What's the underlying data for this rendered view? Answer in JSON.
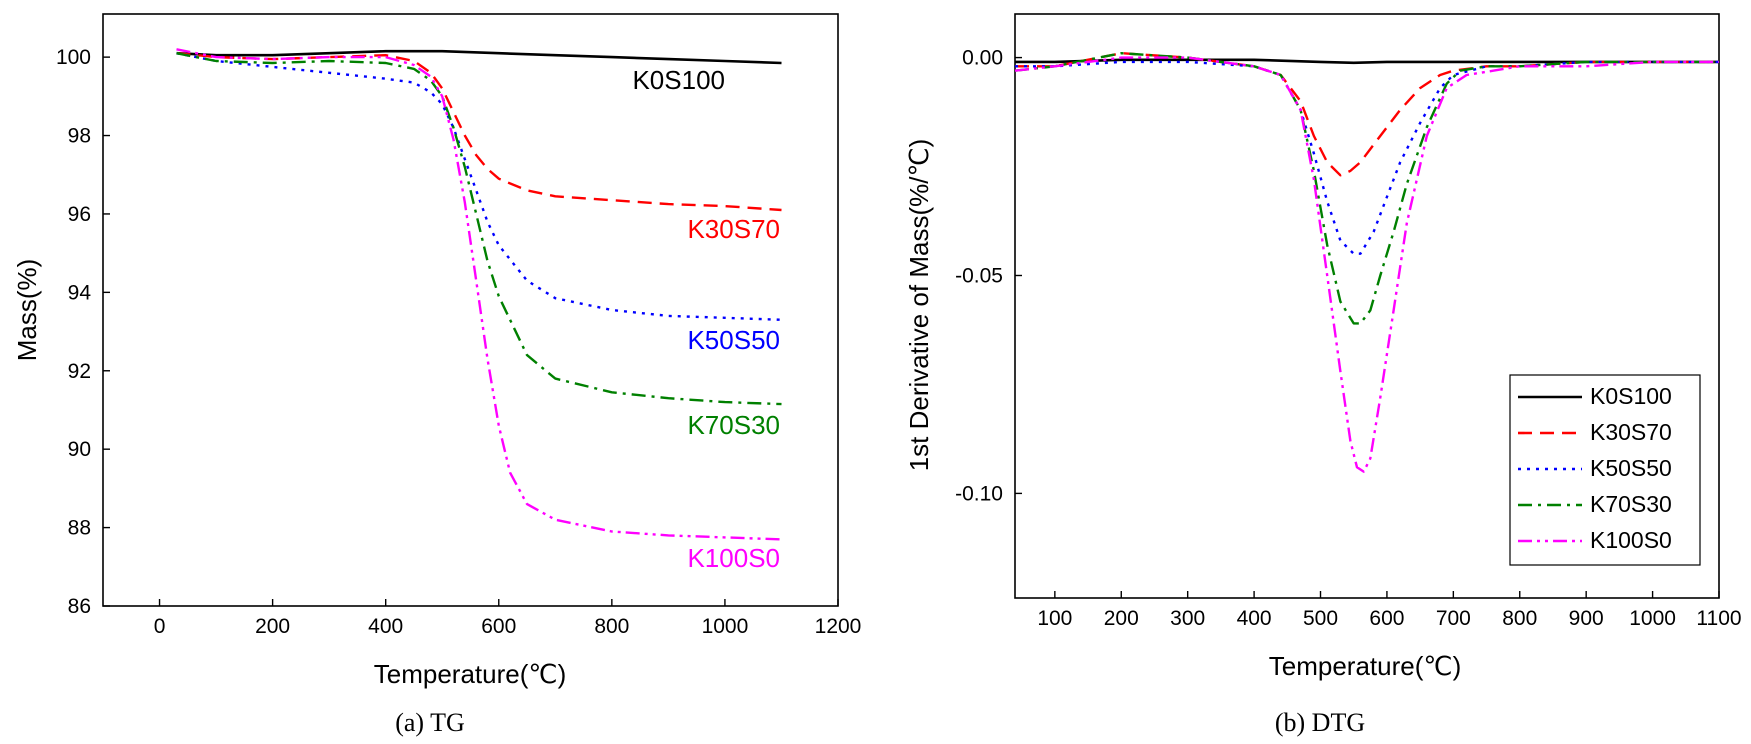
{
  "chart_data": [
    {
      "type": "line",
      "title": "",
      "caption": "(a) TG",
      "xlabel": "Temperature(℃)",
      "ylabel": "Mass(%)",
      "xlim": [
        -100,
        1200
      ],
      "ylim": [
        86,
        101.1
      ],
      "xticks": [
        0,
        200,
        400,
        600,
        800,
        1000,
        1200
      ],
      "xtick_labels": [
        "0",
        "200",
        "400",
        "600",
        "800",
        "1000",
        "1200"
      ],
      "yticks": [
        86,
        88,
        90,
        92,
        94,
        96,
        98,
        100
      ],
      "ytick_labels": [
        "86",
        "88",
        "90",
        "92",
        "94",
        "96",
        "98",
        "100"
      ],
      "series": [
        {
          "name": "K0S100",
          "color": "#000000",
          "dash": "solid",
          "x": [
            30,
            100,
            200,
            300,
            400,
            500,
            600,
            700,
            800,
            900,
            1000,
            1100
          ],
          "y": [
            100.1,
            100.05,
            100.05,
            100.1,
            100.15,
            100.15,
            100.1,
            100.05,
            100.0,
            99.95,
            99.9,
            99.85
          ]
        },
        {
          "name": "K30S70",
          "color": "#ff0000",
          "dash": "dash",
          "x": [
            30,
            100,
            200,
            300,
            400,
            450,
            480,
            500,
            520,
            540,
            560,
            580,
            600,
            650,
            700,
            800,
            900,
            1000,
            1100
          ],
          "y": [
            100.1,
            100.0,
            99.95,
            100.0,
            100.05,
            99.9,
            99.6,
            99.2,
            98.6,
            98.0,
            97.5,
            97.15,
            96.9,
            96.6,
            96.45,
            96.35,
            96.25,
            96.2,
            96.1
          ]
        },
        {
          "name": "K50S50",
          "color": "#0000ff",
          "dash": "dot",
          "x": [
            30,
            100,
            200,
            300,
            400,
            450,
            480,
            500,
            520,
            540,
            560,
            580,
            600,
            650,
            700,
            800,
            900,
            1000,
            1100
          ],
          "y": [
            100.1,
            99.9,
            99.75,
            99.6,
            99.45,
            99.35,
            99.1,
            98.8,
            98.2,
            97.4,
            96.6,
            95.8,
            95.2,
            94.3,
            93.85,
            93.55,
            93.4,
            93.35,
            93.3
          ]
        },
        {
          "name": "K70S30",
          "color": "#008000",
          "dash": "dashdot",
          "x": [
            30,
            100,
            200,
            300,
            400,
            450,
            480,
            500,
            520,
            540,
            560,
            580,
            600,
            650,
            700,
            800,
            900,
            1000,
            1100
          ],
          "y": [
            100.1,
            99.9,
            99.85,
            99.9,
            99.85,
            99.7,
            99.4,
            99.0,
            98.2,
            97.2,
            96.0,
            94.8,
            93.9,
            92.4,
            91.8,
            91.45,
            91.3,
            91.2,
            91.15
          ]
        },
        {
          "name": "K100S0",
          "color": "#ff00ff",
          "dash": "dashdotdot",
          "x": [
            30,
            100,
            200,
            300,
            400,
            450,
            480,
            500,
            520,
            540,
            560,
            580,
            600,
            620,
            650,
            700,
            800,
            900,
            1000,
            1100
          ],
          "y": [
            100.2,
            100.0,
            99.95,
            100.0,
            100.0,
            99.8,
            99.5,
            99.0,
            97.9,
            96.3,
            94.3,
            92.3,
            90.6,
            89.4,
            88.6,
            88.2,
            87.9,
            87.8,
            87.75,
            87.7
          ]
        }
      ],
      "annotations": [
        {
          "text": "K0S100",
          "color": "#000000"
        },
        {
          "text": "K30S70",
          "color": "#ff0000"
        },
        {
          "text": "K50S50",
          "color": "#0000ff"
        },
        {
          "text": "K70S30",
          "color": "#008000"
        },
        {
          "text": "K100S0",
          "color": "#ff00ff"
        }
      ],
      "grid": false
    },
    {
      "type": "line",
      "title": "",
      "caption": "(b) DTG",
      "xlabel": "Temperature(℃)",
      "ylabel": "1st Derivative of Mass(%/℃)",
      "xlim": [
        40,
        1100
      ],
      "ylim": [
        -0.124,
        0.01
      ],
      "xticks": [
        100,
        200,
        300,
        400,
        500,
        600,
        700,
        800,
        900,
        1000,
        1100
      ],
      "xtick_labels": [
        "100",
        "200",
        "300",
        "400",
        "500",
        "600",
        "700",
        "800",
        "900",
        "1000",
        "1100"
      ],
      "yticks": [
        0.0,
        -0.05,
        -0.1
      ],
      "ytick_labels": [
        "0.00",
        "-0.05",
        "-0.10"
      ],
      "series": [
        {
          "name": "K0S100",
          "color": "#000000",
          "dash": "solid",
          "x": [
            40,
            100,
            200,
            300,
            400,
            500,
            550,
            600,
            700,
            800,
            900,
            1000,
            1100
          ],
          "y": [
            -0.001,
            -0.001,
            -0.0005,
            -0.0005,
            -0.0005,
            -0.001,
            -0.0012,
            -0.001,
            -0.001,
            -0.001,
            -0.001,
            -0.001,
            -0.001
          ]
        },
        {
          "name": "K30S70",
          "color": "#ff0000",
          "dash": "dash",
          "x": [
            40,
            100,
            200,
            300,
            400,
            440,
            470,
            490,
            510,
            530,
            545,
            560,
            580,
            600,
            620,
            650,
            680,
            700,
            750,
            800,
            900,
            1000,
            1100
          ],
          "y": [
            -0.002,
            -0.002,
            0.001,
            0.0,
            -0.002,
            -0.004,
            -0.01,
            -0.018,
            -0.024,
            -0.027,
            -0.026,
            -0.024,
            -0.02,
            -0.016,
            -0.012,
            -0.007,
            -0.004,
            -0.003,
            -0.002,
            -0.002,
            -0.001,
            -0.001,
            -0.001
          ]
        },
        {
          "name": "K50S50",
          "color": "#0000ff",
          "dash": "dot",
          "x": [
            40,
            100,
            200,
            300,
            400,
            440,
            470,
            490,
            510,
            530,
            550,
            560,
            580,
            600,
            620,
            650,
            680,
            700,
            750,
            800,
            900,
            1000,
            1100
          ],
          "y": [
            -0.002,
            -0.002,
            -0.001,
            -0.001,
            -0.002,
            -0.004,
            -0.012,
            -0.022,
            -0.033,
            -0.042,
            -0.045,
            -0.045,
            -0.04,
            -0.032,
            -0.024,
            -0.015,
            -0.007,
            -0.004,
            -0.002,
            -0.002,
            -0.001,
            -0.001,
            -0.001
          ]
        },
        {
          "name": "K70S30",
          "color": "#008000",
          "dash": "dashdot",
          "x": [
            40,
            100,
            200,
            300,
            400,
            440,
            470,
            490,
            510,
            530,
            550,
            560,
            575,
            590,
            610,
            630,
            660,
            690,
            710,
            750,
            800,
            900,
            1000,
            1100
          ],
          "y": [
            -0.003,
            -0.002,
            0.001,
            0.0,
            -0.002,
            -0.004,
            -0.012,
            -0.026,
            -0.043,
            -0.056,
            -0.061,
            -0.061,
            -0.058,
            -0.05,
            -0.04,
            -0.029,
            -0.016,
            -0.006,
            -0.003,
            -0.002,
            -0.002,
            -0.001,
            -0.001,
            -0.001
          ]
        },
        {
          "name": "K100S0",
          "color": "#ff00ff",
          "dash": "dashdotdot",
          "x": [
            40,
            100,
            200,
            300,
            400,
            440,
            470,
            490,
            510,
            530,
            545,
            555,
            565,
            575,
            590,
            610,
            630,
            660,
            690,
            720,
            760,
            800,
            900,
            1000,
            1100
          ],
          "y": [
            -0.003,
            -0.002,
            0.0,
            0.0,
            -0.002,
            -0.004,
            -0.012,
            -0.028,
            -0.05,
            -0.072,
            -0.088,
            -0.094,
            -0.095,
            -0.092,
            -0.078,
            -0.058,
            -0.038,
            -0.018,
            -0.007,
            -0.004,
            -0.003,
            -0.002,
            -0.002,
            -0.001,
            -0.001
          ]
        }
      ],
      "legend": {
        "placement": "bottom-right",
        "entries": [
          {
            "label": "K0S100",
            "color": "#000000",
            "dash": "solid"
          },
          {
            "label": "K30S70",
            "color": "#ff0000",
            "dash": "dash"
          },
          {
            "label": "K50S50",
            "color": "#0000ff",
            "dash": "dot"
          },
          {
            "label": "K70S30",
            "color": "#008000",
            "dash": "dashdot"
          },
          {
            "label": "K100S0",
            "color": "#ff00ff",
            "dash": "dashdotdot"
          }
        ]
      },
      "grid": false
    }
  ]
}
